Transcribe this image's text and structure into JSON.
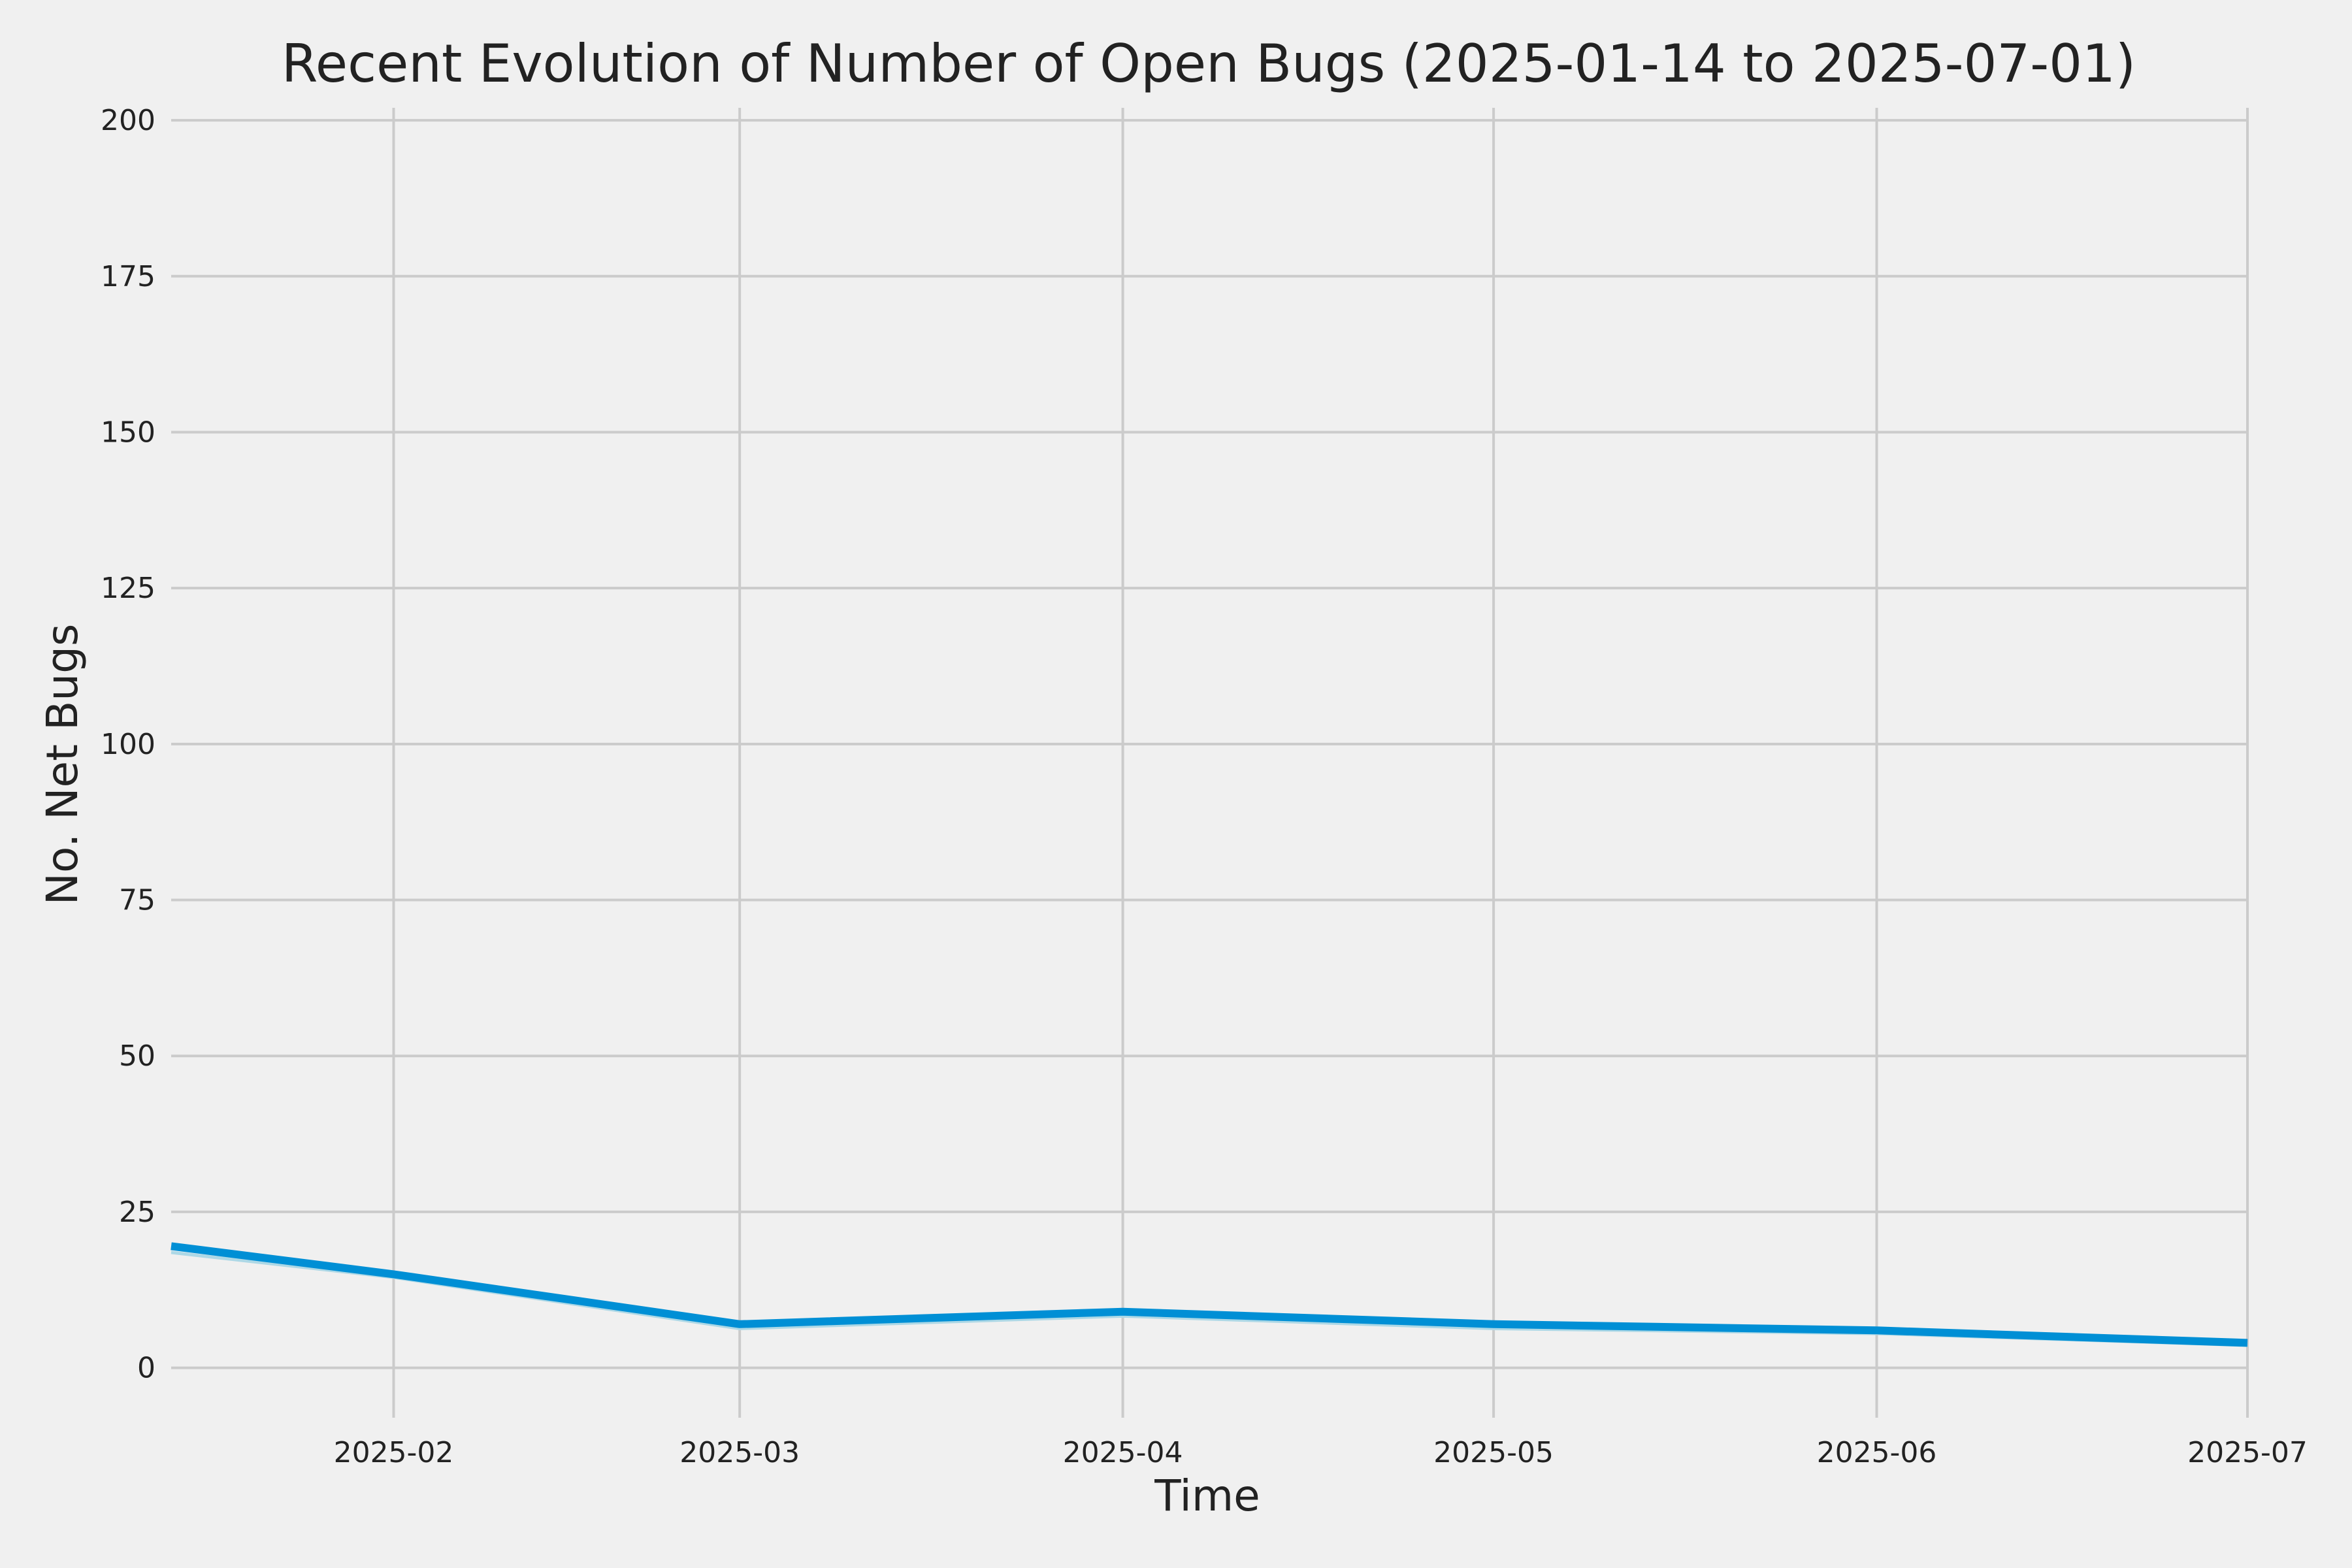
{
  "chart_data": {
    "type": "line",
    "title": "Recent Evolution of Number of Open Bugs (2025-01-14 to 2025-07-01)",
    "xlabel": "Time",
    "ylabel": "No. Net Bugs",
    "xlim": [
      "2025-01-14",
      "2025-07-01"
    ],
    "ylim": [
      -8,
      202
    ],
    "x_ticks": [
      {
        "date": "2025-02-01",
        "label": "2025-02"
      },
      {
        "date": "2025-03-01",
        "label": "2025-03"
      },
      {
        "date": "2025-04-01",
        "label": "2025-04"
      },
      {
        "date": "2025-05-01",
        "label": "2025-05"
      },
      {
        "date": "2025-06-01",
        "label": "2025-06"
      },
      {
        "date": "2025-07-01",
        "label": "2025-07"
      }
    ],
    "y_ticks": [
      0,
      25,
      50,
      75,
      100,
      125,
      150,
      175,
      200
    ],
    "grid": true,
    "background": "#f0f0f0",
    "series": [
      {
        "color": "#008fd5",
        "x": [
          "2025-01-14",
          "2025-02-01",
          "2025-03-01",
          "2025-04-01",
          "2025-05-01",
          "2025-06-01",
          "2025-07-01"
        ],
        "values": [
          19.5,
          15,
          7,
          9,
          7,
          6,
          4
        ]
      },
      {
        "color": "#add8e6",
        "x": [
          "2025-01-14",
          "2025-02-01",
          "2025-03-01",
          "2025-04-01",
          "2025-05-01",
          "2025-06-01",
          "2025-07-01"
        ],
        "values": [
          18.5,
          14.5,
          6.3,
          8.3,
          6.3,
          5.5,
          3.6
        ]
      }
    ]
  }
}
